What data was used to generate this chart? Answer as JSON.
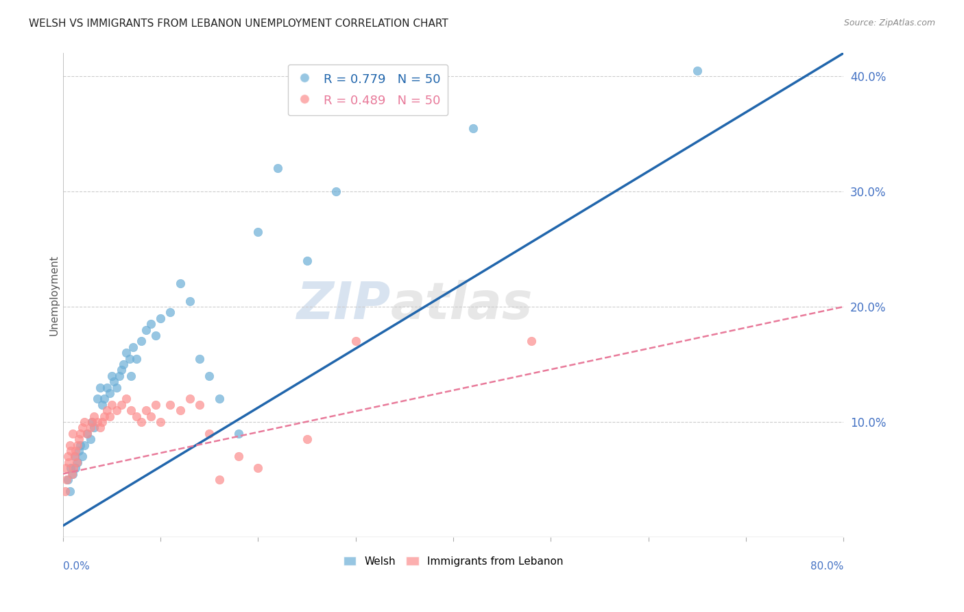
{
  "title": "WELSH VS IMMIGRANTS FROM LEBANON UNEMPLOYMENT CORRELATION CHART",
  "source": "Source: ZipAtlas.com",
  "ylabel": "Unemployment",
  "x_min": 0.0,
  "x_max": 0.8,
  "y_min": 0.0,
  "y_max": 0.42,
  "yticks": [
    0.0,
    0.1,
    0.2,
    0.3,
    0.4
  ],
  "ytick_labels": [
    "",
    "10.0%",
    "20.0%",
    "30.0%",
    "40.0%"
  ],
  "xticks": [
    0.0,
    0.1,
    0.2,
    0.3,
    0.4,
    0.5,
    0.6,
    0.7,
    0.8
  ],
  "watermark_zip": "ZIP",
  "watermark_atlas": "atlas",
  "legend_welsh_label": "R = 0.779   N = 50",
  "legend_leb_label": "R = 0.489   N = 50",
  "welsh_color": "#6baed6",
  "leb_color": "#fc8d8d",
  "welsh_line_color": "#2166ac",
  "leb_line_color": "#e87a9a",
  "welsh_scatter": {
    "x": [
      0.005,
      0.007,
      0.008,
      0.01,
      0.012,
      0.013,
      0.015,
      0.016,
      0.018,
      0.02,
      0.022,
      0.025,
      0.028,
      0.03,
      0.032,
      0.035,
      0.038,
      0.04,
      0.042,
      0.045,
      0.048,
      0.05,
      0.052,
      0.055,
      0.058,
      0.06,
      0.062,
      0.065,
      0.068,
      0.07,
      0.072,
      0.075,
      0.08,
      0.085,
      0.09,
      0.095,
      0.1,
      0.11,
      0.12,
      0.13,
      0.14,
      0.15,
      0.16,
      0.18,
      0.2,
      0.22,
      0.25,
      0.28,
      0.42,
      0.65
    ],
    "y": [
      0.05,
      0.04,
      0.06,
      0.055,
      0.07,
      0.06,
      0.065,
      0.075,
      0.08,
      0.07,
      0.08,
      0.09,
      0.085,
      0.1,
      0.095,
      0.12,
      0.13,
      0.115,
      0.12,
      0.13,
      0.125,
      0.14,
      0.135,
      0.13,
      0.14,
      0.145,
      0.15,
      0.16,
      0.155,
      0.14,
      0.165,
      0.155,
      0.17,
      0.18,
      0.185,
      0.175,
      0.19,
      0.195,
      0.22,
      0.205,
      0.155,
      0.14,
      0.12,
      0.09,
      0.265,
      0.32,
      0.24,
      0.3,
      0.355,
      0.405
    ]
  },
  "leb_scatter": {
    "x": [
      0.002,
      0.003,
      0.004,
      0.005,
      0.006,
      0.007,
      0.008,
      0.009,
      0.01,
      0.011,
      0.012,
      0.013,
      0.014,
      0.015,
      0.016,
      0.018,
      0.02,
      0.022,
      0.025,
      0.028,
      0.03,
      0.032,
      0.035,
      0.038,
      0.04,
      0.042,
      0.045,
      0.048,
      0.05,
      0.055,
      0.06,
      0.065,
      0.07,
      0.075,
      0.08,
      0.085,
      0.09,
      0.095,
      0.1,
      0.11,
      0.12,
      0.13,
      0.14,
      0.15,
      0.16,
      0.18,
      0.2,
      0.25,
      0.3,
      0.48
    ],
    "y": [
      0.04,
      0.06,
      0.05,
      0.07,
      0.065,
      0.08,
      0.075,
      0.055,
      0.09,
      0.06,
      0.07,
      0.075,
      0.065,
      0.08,
      0.085,
      0.09,
      0.095,
      0.1,
      0.09,
      0.095,
      0.1,
      0.105,
      0.1,
      0.095,
      0.1,
      0.105,
      0.11,
      0.105,
      0.115,
      0.11,
      0.115,
      0.12,
      0.11,
      0.105,
      0.1,
      0.11,
      0.105,
      0.115,
      0.1,
      0.115,
      0.11,
      0.12,
      0.115,
      0.09,
      0.05,
      0.07,
      0.06,
      0.085,
      0.17,
      0.17
    ]
  },
  "welsh_line": {
    "x0": 0.0,
    "y0": 0.01,
    "x1": 0.8,
    "y1": 0.42
  },
  "leb_line": {
    "x0": 0.0,
    "y0": 0.055,
    "x1": 0.8,
    "y1": 0.2
  },
  "background_color": "#ffffff",
  "grid_color": "#cccccc",
  "title_fontsize": 11,
  "tick_label_color": "#4472c4"
}
